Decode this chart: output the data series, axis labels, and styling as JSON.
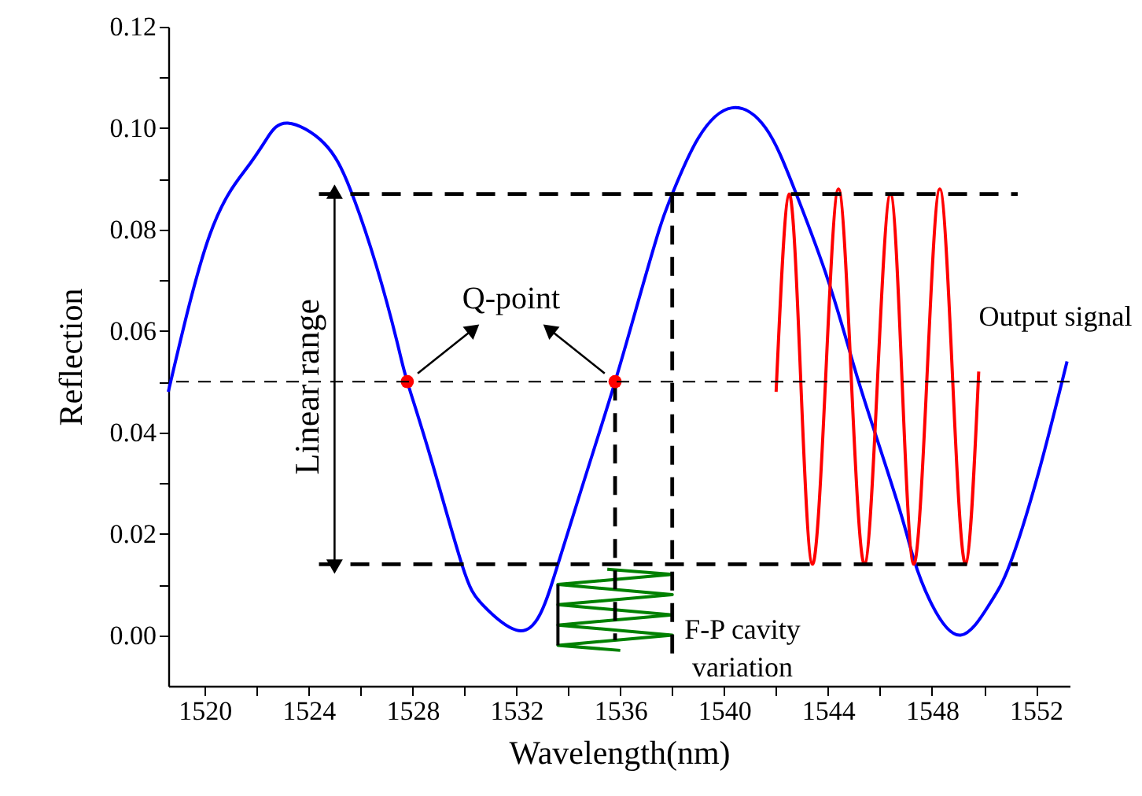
{
  "chart_data": {
    "type": "line",
    "xlabel": "Wavelength(nm)",
    "ylabel": "Reflection",
    "xlim": [
      1518.6,
      1553.3
    ],
    "ylim": [
      -0.01,
      0.12
    ],
    "xticks": [
      1520,
      {
        "value": 1522,
        "label": null
      },
      1524,
      {
        "value": 1526,
        "label": null
      },
      1528,
      {
        "value": 1530,
        "label": null
      },
      1532,
      {
        "value": 1534,
        "label": null
      },
      1536,
      {
        "value": 1538,
        "label": null
      },
      1540,
      {
        "value": 1542,
        "label": null
      },
      1544,
      {
        "value": 1546,
        "label": null
      },
      1548,
      {
        "value": 1550,
        "label": null
      },
      1552
    ],
    "yticks": [
      {
        "value": 0,
        "label": "0.00"
      },
      {
        "value": 0.01,
        "label": null
      },
      {
        "value": 0.02,
        "label": "0.02"
      },
      {
        "value": 0.03,
        "label": null
      },
      {
        "value": 0.04,
        "label": "0.04"
      },
      {
        "value": 0.05,
        "label": null
      },
      {
        "value": 0.06,
        "label": "0.06"
      },
      {
        "value": 0.07,
        "label": null
      },
      {
        "value": 0.08,
        "label": "0.08"
      },
      {
        "value": 0.09,
        "label": null
      },
      {
        "value": 0.1,
        "label": "0.10"
      },
      {
        "value": 0.11,
        "label": null
      },
      {
        "value": 0.12,
        "label": "0.12"
      }
    ],
    "series": [
      {
        "color": "#0000ff",
        "line_style": "solid",
        "x": [
          1518.6,
          1520.2,
          1521.6,
          1522.4,
          1523.2,
          1524.6,
          1525.6,
          1526.6,
          1527.4,
          1527.8,
          1528.7,
          1529.9,
          1530.7,
          1532.0,
          1532.9,
          1533.6,
          1534.7,
          1535.8,
          1536.7,
          1537.5,
          1538.0,
          1539.0,
          1540.3,
          1541.6,
          1542.7,
          1544.0,
          1545.0,
          1545.8,
          1546.8,
          1547.3,
          1548.0,
          1549.1,
          1550.2,
          1551.0,
          1552.1,
          1553.2
        ],
        "values": [
          0.048,
          0.079,
          0.092,
          0.098,
          0.101,
          0.097,
          0.088,
          0.073,
          0.058,
          0.05,
          0.035,
          0.014,
          0.006,
          0.001,
          0.004,
          0.014,
          0.032,
          0.05,
          0.066,
          0.08,
          0.087,
          0.098,
          0.104,
          0.1,
          0.088,
          0.07,
          0.053,
          0.04,
          0.024,
          0.015,
          0.006,
          0.0,
          0.006,
          0.014,
          0.032,
          0.054
        ]
      },
      {
        "color": "#ff0000",
        "line_style": "solid",
        "x": [
          1542.0,
          1542.5,
          1542.95,
          1543.4,
          1543.9,
          1544.4,
          1544.9,
          1545.4,
          1545.9,
          1546.4,
          1546.85,
          1547.3,
          1547.8,
          1548.3,
          1548.8,
          1549.3,
          1549.8
        ],
        "values": [
          0.048,
          0.087,
          0.05,
          0.014,
          0.05,
          0.088,
          0.05,
          0.014,
          0.05,
          0.087,
          0.05,
          0.014,
          0.05,
          0.088,
          0.05,
          0.014,
          0.052
        ]
      },
      {
        "color": "#008000",
        "line_style": "solid",
        "x": [
          1535.5,
          1538.0,
          1533.6,
          1538.0,
          1533.6,
          1538.0,
          1533.6,
          1538.0,
          1533.6,
          1536.0
        ],
        "values": [
          0.013,
          0.012,
          0.01,
          0.008,
          0.006,
          0.004,
          0.002,
          0.0,
          -0.002,
          -0.003
        ]
      },
      {
        "color": "#000000",
        "line_style": "dashed",
        "x": [
          1524.4,
          1551.3
        ],
        "values": [
          0.087,
          0.087
        ]
      },
      {
        "color": "#000000",
        "line_style": "dashed",
        "x": [
          1524.4,
          1551.3
        ],
        "values": [
          0.014,
          0.014
        ]
      },
      {
        "color": "#000000",
        "line_style": "dashed",
        "x": [
          1538.0,
          1538.0
        ],
        "values": [
          0.087,
          -0.004
        ]
      },
      {
        "color": "#000000",
        "line_style": "dashed",
        "x": [
          1535.8,
          1535.8
        ],
        "values": [
          0.05,
          -0.001
        ]
      },
      {
        "color": "#000000",
        "line_style": "solid",
        "x": [
          1533.6,
          1533.6
        ],
        "values": [
          0.01,
          -0.002
        ]
      },
      {
        "type": "scatter",
        "color": "#ff0000",
        "marker": "circle",
        "x": [
          1527.8,
          1535.8
        ],
        "values": [
          0.05,
          0.05
        ]
      }
    ],
    "ref_lines": [
      {
        "axis": "y",
        "value": 0.05,
        "color": "#000000",
        "line_style": "dashed"
      }
    ],
    "annotations": [
      "Q-point",
      {
        "text": "Linear range",
        "x": 1525.0,
        "y": 0.049
      },
      "Output signal",
      "F-P cavity\nvariation"
    ]
  }
}
